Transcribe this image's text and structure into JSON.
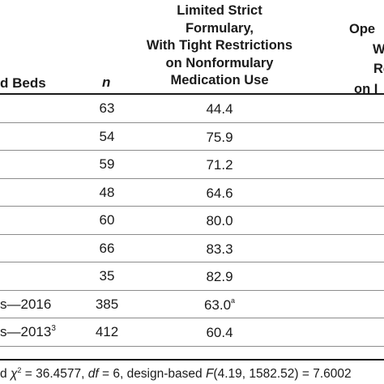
{
  "header": {
    "beds_label": "d Beds",
    "n_label": "n",
    "col1_lines": [
      "Limited Strict",
      "Formulary,",
      "With Tight Restrictions",
      "on Nonformulary",
      "Medication Use"
    ],
    "col2_lines": [
      "Ope",
      "W",
      "Re",
      "on I"
    ]
  },
  "rows": [
    {
      "label": "",
      "label_sup": "",
      "n": "63",
      "value": "44.4",
      "value_sup": ""
    },
    {
      "label": "",
      "label_sup": "",
      "n": "54",
      "value": "75.9",
      "value_sup": ""
    },
    {
      "label": "",
      "label_sup": "",
      "n": "59",
      "value": "71.2",
      "value_sup": ""
    },
    {
      "label": "",
      "label_sup": "",
      "n": "48",
      "value": "64.6",
      "value_sup": ""
    },
    {
      "label": "",
      "label_sup": "",
      "n": "60",
      "value": "80.0",
      "value_sup": ""
    },
    {
      "label": "",
      "label_sup": "",
      "n": "66",
      "value": "83.3",
      "value_sup": ""
    },
    {
      "label": "",
      "label_sup": "",
      "n": "35",
      "value": "82.9",
      "value_sup": ""
    },
    {
      "label": "s—2016",
      "label_sup": "",
      "n": "385",
      "value": "63.0",
      "value_sup": "a"
    },
    {
      "label": "s—2013",
      "label_sup": "3",
      "n": "412",
      "value": "60.4",
      "value_sup": ""
    }
  ],
  "footnote": {
    "pre": "d ",
    "chi": "χ",
    "chi_sup": "2",
    "eq1": " = 36.4577, ",
    "df": "df",
    "eq2": " = 6, design-based ",
    "F": "F",
    "eq3": "(4.19, 1582.52) = 7.6002"
  }
}
